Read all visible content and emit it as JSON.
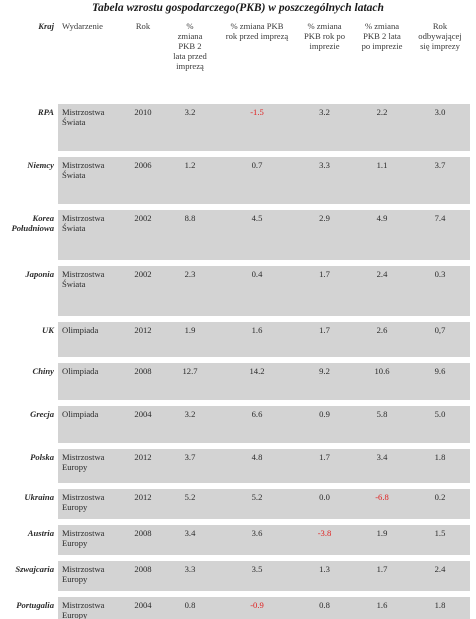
{
  "title": "Tabela wzrostu gospodarczego(PKB) w poszczególnych latach",
  "table": {
    "headers": [
      "Kraj",
      "Wydarzenie",
      "Rok",
      "% zmiana PKB 2 lata przed imprezą",
      "% zmiana PKB rok przed imprezą",
      "% zmiana PKB rok po imprezie",
      "% zmiana PKB 2 lata po imprezie",
      "Rok odbywającej się imprezy"
    ],
    "rows": [
      [
        "RPA",
        "Mistrzostwa Świata",
        "2010",
        "3.2",
        "-1.5",
        "3.2",
        "2.2",
        "3.0"
      ],
      [
        "Niemcy",
        "Mistrzostwa Świata",
        "2006",
        "1.2",
        "0.7",
        "3.3",
        "1.1",
        "3.7"
      ],
      [
        "Korea Południowa",
        "Mistrzostwa Świata",
        "2002",
        "8.8",
        "4.5",
        "2.9",
        "4.9",
        "7.4"
      ],
      [
        "Japonia",
        "Mistrzostwa Świata",
        "2002",
        "2.3",
        "0.4",
        "1.7",
        "2.4",
        "0.3"
      ],
      [
        "UK",
        "Olimpiada",
        "2012",
        "1.9",
        "1.6",
        "1.7",
        "2.6",
        "0,7"
      ],
      [
        "Chiny",
        "Olimpiada",
        "2008",
        "12.7",
        "14.2",
        "9.2",
        "10.6",
        "9.6"
      ],
      [
        "Grecja",
        "Olimpiada",
        "2004",
        "3.2",
        "6.6",
        "0.9",
        "5.8",
        "5.0"
      ],
      [
        "Polska",
        "Mistrzostwa Europy",
        "2012",
        "3.7",
        "4.8",
        "1.7",
        "3.4",
        "1.8"
      ],
      [
        "Ukraina",
        "Mistrzostwa Europy",
        "2012",
        "5.2",
        "5.2",
        "0.0",
        "-6.8",
        "0.2"
      ],
      [
        "Austria",
        "Mistrzostwa Europy",
        "2008",
        "3.4",
        "3.6",
        "-3.8",
        "1.9",
        "1.5"
      ],
      [
        "Szwajcaria",
        "Mistrzostwa Europy",
        "2008",
        "3.3",
        "3.5",
        "1.3",
        "1.7",
        "2.4"
      ],
      [
        "Portugalia",
        "Mistrzostwa Europy",
        "2004",
        "0.8",
        "-0.9",
        "0.8",
        "1.6",
        "1.8"
      ]
    ],
    "negative_color": "#e02020",
    "row_fill_color": "#d3d3d3"
  }
}
